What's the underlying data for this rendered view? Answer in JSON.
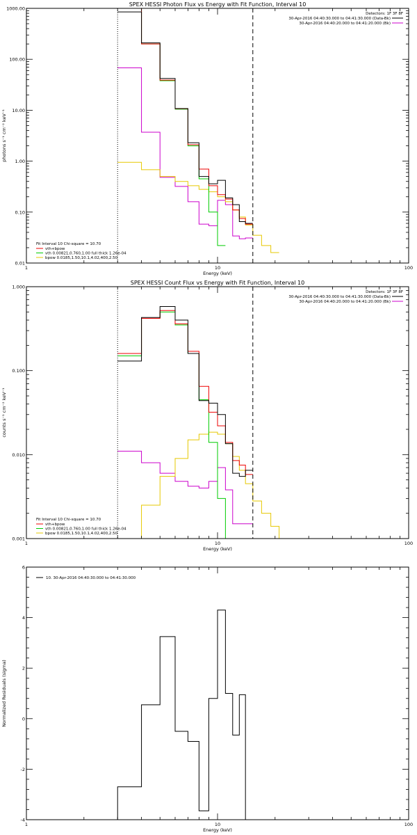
{
  "colors": {
    "data": "#000000",
    "background": "#cc00cc",
    "vth": "#00cc00",
    "bpow": "#e6c800",
    "total": "#ee0000"
  },
  "chart_data": [
    {
      "type": "line",
      "title": "SPEX HESSI Photon Flux vs Energy with Fit Function, Interval 10",
      "xlabel": "Energy (keV)",
      "ylabel": "photons s⁻¹ cm⁻² keV⁻¹",
      "xscale": "log",
      "yscale": "log",
      "xlim": [
        1,
        100
      ],
      "ylim": [
        0.01,
        1000
      ],
      "xticks": [
        {
          "v": 1,
          "label": "1"
        },
        {
          "v": 10,
          "label": "10"
        },
        {
          "v": 100,
          "label": "100"
        }
      ],
      "yticks": [
        {
          "v": 0.01,
          "label": "0.01"
        },
        {
          "v": 0.1,
          "label": "0.10"
        },
        {
          "v": 1,
          "label": "1.00"
        },
        {
          "v": 10,
          "label": "10.00"
        },
        {
          "v": 100,
          "label": "100.00"
        },
        {
          "v": 1000,
          "label": "1000.00"
        }
      ],
      "top_legend": [
        {
          "text": "Detectors: 1F 3F 8F",
          "color": ""
        },
        {
          "text": "30-Apr-2016 04:40:30.000 to 04:41:30.000 (Data-Bk)",
          "color": "#000000"
        },
        {
          "text": "30-Apr-2016 04:40:20.000 to 04:41:20.000 (Bk)",
          "color": "#cc00cc"
        }
      ],
      "bottom_legend": {
        "header": "Fit Interval 10   Chi-square = 10.70",
        "items": [
          {
            "text": "vth+bpow",
            "color": "#ee0000"
          },
          {
            "text": "vth 0.00821,0.760,1.00  full thick 1.26e-04",
            "color": "#00cc00"
          },
          {
            "text": "bpow 0.0185,1.50,10.1,4.02,400,2.50",
            "color": "#e6c800"
          }
        ]
      },
      "vlines": [
        {
          "x": 3.0,
          "style": "dotted"
        },
        {
          "x": 15.3,
          "style": "dashed"
        }
      ],
      "edges": [
        3.0,
        4.0,
        5.0,
        6.0,
        7.0,
        8.0,
        9.0,
        10.0,
        11.0,
        12.0,
        13.0,
        14.0,
        15.3,
        17.0,
        19.0,
        21.0
      ],
      "series": [
        {
          "color": "#cc00cc",
          "values": [
            68,
            3.7,
            0.48,
            0.32,
            0.16,
            0.058,
            0.054,
            0.17,
            0.14,
            0.034,
            0.03,
            0.031
          ]
        },
        {
          "color": "#e6c800",
          "values": [
            0.95,
            0.68,
            0.5,
            0.4,
            0.33,
            0.28,
            0.25,
            0.2,
            0.16,
            0.11,
            0.08,
            0.056,
            0.035,
            0.022,
            0.016
          ]
        },
        {
          "color": "#00cc00",
          "values": [
            1000,
            200,
            38,
            10.5,
            2.0,
            0.45,
            0.1,
            0.022
          ]
        },
        {
          "color": "#ee0000",
          "values": [
            1000,
            200,
            39,
            10.7,
            2.1,
            0.7,
            0.33,
            0.22,
            0.18,
            0.11,
            0.075,
            0.058
          ]
        },
        {
          "color": "#000000",
          "values": [
            850,
            210,
            42,
            10.8,
            2.3,
            0.5,
            0.36,
            0.42,
            0.19,
            0.14,
            0.065,
            0.06
          ]
        }
      ]
    },
    {
      "type": "line",
      "title": "SPEX HESSI Count Flux vs Energy with Fit Function, Interval 10",
      "xlabel": "Energy (keV)",
      "ylabel": "counts s⁻¹ cm⁻² keV⁻¹",
      "xscale": "log",
      "yscale": "log",
      "xlim": [
        1,
        100
      ],
      "ylim": [
        0.001,
        1
      ],
      "xticks": [
        {
          "v": 1,
          "label": "1"
        },
        {
          "v": 10,
          "label": "10"
        },
        {
          "v": 100,
          "label": "100"
        }
      ],
      "yticks": [
        {
          "v": 0.001,
          "label": "0.001"
        },
        {
          "v": 0.01,
          "label": "0.010"
        },
        {
          "v": 0.1,
          "label": "0.100"
        },
        {
          "v": 1,
          "label": "1.000"
        }
      ],
      "top_legend": [
        {
          "text": "Detectors: 1F 3F 8F",
          "color": ""
        },
        {
          "text": "30-Apr-2016 04:40:30.000 to 04:41:30.000 (Data-Bk)",
          "color": "#000000"
        },
        {
          "text": "30-Apr-2016 04:40:20.000 to 04:41:20.000 (Bk)",
          "color": "#cc00cc"
        }
      ],
      "bottom_legend": {
        "header": "Fit Interval 10   Chi-square = 10.70",
        "items": [
          {
            "text": "vth+bpow",
            "color": "#ee0000"
          },
          {
            "text": "vth 0.00821,0.760,1.00  full thick 1.26e-04",
            "color": "#00cc00"
          },
          {
            "text": "bpow 0.0185,1.50,10.1,4.02,400,2.50",
            "color": "#e6c800"
          }
        ]
      },
      "vlines": [
        {
          "x": 3.0,
          "style": "dotted"
        },
        {
          "x": 15.3,
          "style": "dashed"
        }
      ],
      "edges": [
        3.0,
        4.0,
        5.0,
        6.0,
        7.0,
        8.0,
        9.0,
        10.0,
        11.0,
        12.0,
        13.0,
        14.0,
        15.3,
        17.0,
        19.0,
        21.0,
        23.0
      ],
      "series": [
        {
          "color": "#cc00cc",
          "values": [
            0.011,
            0.008,
            0.006,
            0.0048,
            0.0042,
            0.004,
            0.0048,
            0.007,
            0.0038,
            0.0015,
            0.0015,
            0.0015
          ]
        },
        {
          "color": "#e6c800",
          "values": [
            0.001,
            0.0025,
            0.0055,
            0.009,
            0.015,
            0.0175,
            0.0185,
            0.0175,
            0.0135,
            0.0095,
            0.0065,
            0.0045,
            0.0028,
            0.002,
            0.0014,
            0.001
          ]
        },
        {
          "color": "#00cc00",
          "values": [
            0.15,
            0.42,
            0.5,
            0.35,
            0.16,
            0.045,
            0.014,
            0.003,
            0.001
          ]
        },
        {
          "color": "#ee0000",
          "values": [
            0.16,
            0.42,
            0.52,
            0.36,
            0.17,
            0.065,
            0.032,
            0.022,
            0.014,
            0.0085,
            0.0075,
            0.0058
          ]
        },
        {
          "color": "#000000",
          "values": [
            0.13,
            0.43,
            0.58,
            0.4,
            0.16,
            0.044,
            0.041,
            0.03,
            0.0135,
            0.006,
            0.0055,
            0.0065
          ]
        }
      ]
    },
    {
      "type": "line",
      "title": "",
      "xlabel": "Energy (keV)",
      "ylabel": "Normalized Residuals (sigma)",
      "xscale": "log",
      "yscale": "linear",
      "xlim": [
        1,
        100
      ],
      "ylim": [
        -4,
        6
      ],
      "xticks": [
        {
          "v": 1,
          "label": "1"
        },
        {
          "v": 10,
          "label": "10"
        },
        {
          "v": 100,
          "label": "100"
        }
      ],
      "yticks": [
        {
          "v": -4,
          "label": "-4"
        },
        {
          "v": -2,
          "label": "-2"
        },
        {
          "v": 0,
          "label": "0"
        },
        {
          "v": 2,
          "label": "2"
        },
        {
          "v": 4,
          "label": "4"
        },
        {
          "v": 6,
          "label": "6"
        }
      ],
      "legend": "10. 30-Apr-2016 04:40:30.000 to 04:41:30.000",
      "edges": [
        3.0,
        4.0,
        5.0,
        6.0,
        7.0,
        8.0,
        9.0,
        10.0,
        11.0,
        12.0,
        13.0,
        14.0
      ],
      "series": [
        {
          "color": "#000000",
          "values": [
            -2.7,
            0.55,
            3.25,
            -0.5,
            -0.9,
            -3.65,
            0.8,
            4.3,
            1.0,
            -0.65,
            0.95
          ],
          "closed": true
        }
      ]
    }
  ]
}
